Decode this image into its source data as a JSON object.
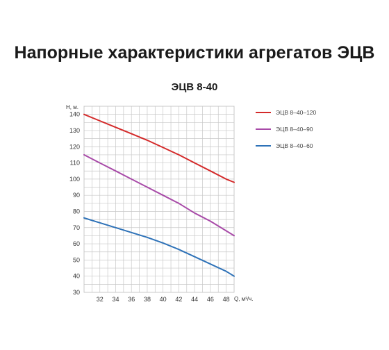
{
  "heading": "Напорные характеристики агрегатов ЭЦВ",
  "chart_data": {
    "type": "line",
    "title": "ЭЦВ 8-40",
    "xlabel": "Q, м³/ч.",
    "ylabel": "Н, м.",
    "xlim": [
      30,
      49
    ],
    "ylim": [
      30,
      145
    ],
    "x_ticks": [
      32,
      34,
      36,
      38,
      40,
      42,
      44,
      46,
      48
    ],
    "y_ticks": [
      30,
      40,
      50,
      60,
      70,
      80,
      90,
      100,
      110,
      120,
      130,
      140
    ],
    "grid": true,
    "legend_position": "right",
    "series": [
      {
        "name": "ЭЦВ  8–40–120",
        "color": "#d42a2a",
        "x": [
          30,
          32,
          34,
          36,
          38,
          40,
          42,
          44,
          46,
          48,
          49
        ],
        "y": [
          140,
          136,
          132,
          128,
          124,
          119.5,
          115,
          110,
          105,
          100,
          98
        ]
      },
      {
        "name": "ЭЦВ  8–40–90",
        "color": "#a84aa8",
        "x": [
          30,
          32,
          34,
          36,
          38,
          40,
          42,
          44,
          46,
          48,
          49
        ],
        "y": [
          115,
          110,
          105,
          100,
          95,
          90,
          85,
          79,
          74,
          68,
          65
        ]
      },
      {
        "name": "ЭЦВ  8–40–60",
        "color": "#2e72b8",
        "x": [
          30,
          32,
          34,
          36,
          38,
          40,
          42,
          44,
          46,
          48,
          49
        ],
        "y": [
          76,
          73,
          70,
          67,
          64,
          60.5,
          56.5,
          52,
          47.5,
          43,
          40
        ]
      }
    ]
  }
}
